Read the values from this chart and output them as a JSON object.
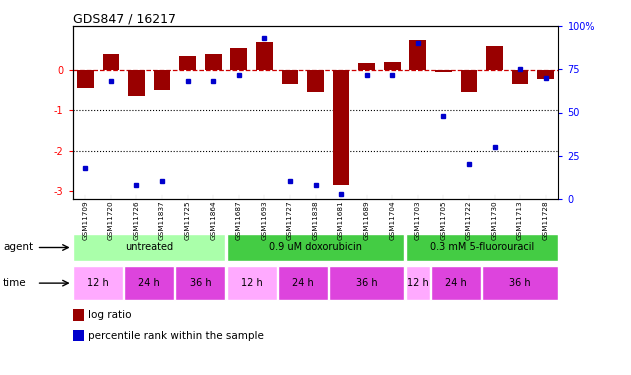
{
  "title": "GDS847 / 16217",
  "samples": [
    "GSM11709",
    "GSM11720",
    "GSM11726",
    "GSM11837",
    "GSM11725",
    "GSM11864",
    "GSM11687",
    "GSM11693",
    "GSM11727",
    "GSM11838",
    "GSM11681",
    "GSM11689",
    "GSM11704",
    "GSM11703",
    "GSM11705",
    "GSM11722",
    "GSM11730",
    "GSM11713",
    "GSM11728"
  ],
  "log_ratio": [
    -0.45,
    0.42,
    -0.65,
    -0.5,
    0.37,
    0.42,
    0.55,
    0.7,
    -0.35,
    -0.55,
    -2.85,
    0.18,
    0.22,
    0.75,
    -0.05,
    -0.55,
    0.6,
    -0.35,
    -0.22
  ],
  "percentile": [
    18,
    68,
    8,
    10,
    68,
    68,
    72,
    93,
    10,
    8,
    3,
    72,
    72,
    90,
    48,
    20,
    30,
    75,
    70
  ],
  "ylim_left": [
    -3.2,
    1.1
  ],
  "ylim_right": [
    0,
    100
  ],
  "bar_color": "#990000",
  "dot_color": "#0000cc",
  "hline_color": "#cc0000",
  "dotline1": -1.0,
  "dotline2": -2.0,
  "right_ticks": [
    0,
    25,
    50,
    75,
    100
  ],
  "right_tick_labels": [
    "0",
    "25",
    "50",
    "75",
    "100%"
  ],
  "agent_groups": [
    {
      "label": "untreated",
      "start": 0,
      "end": 6,
      "color": "#aaffaa"
    },
    {
      "label": "0.9 uM doxorubicin",
      "start": 6,
      "end": 13,
      "color": "#44cc44"
    },
    {
      "label": "0.3 mM 5-fluorouracil",
      "start": 13,
      "end": 19,
      "color": "#44cc44"
    }
  ],
  "time_groups": [
    {
      "label": "12 h",
      "color": "#ffaaff",
      "start": 0,
      "end": 2
    },
    {
      "label": "24 h",
      "color": "#dd44dd",
      "start": 2,
      "end": 4
    },
    {
      "label": "36 h",
      "color": "#dd44dd",
      "start": 4,
      "end": 6
    },
    {
      "label": "12 h",
      "color": "#ffaaff",
      "start": 6,
      "end": 8
    },
    {
      "label": "24 h",
      "color": "#dd44dd",
      "start": 8,
      "end": 10
    },
    {
      "label": "36 h",
      "color": "#dd44dd",
      "start": 10,
      "end": 13
    },
    {
      "label": "12 h",
      "color": "#ffaaff",
      "start": 13,
      "end": 14
    },
    {
      "label": "24 h",
      "color": "#dd44dd",
      "start": 14,
      "end": 16
    },
    {
      "label": "36 h",
      "color": "#dd44dd",
      "start": 16,
      "end": 19
    }
  ],
  "legend_items": [
    {
      "label": "log ratio",
      "color": "#990000"
    },
    {
      "label": "percentile rank within the sample",
      "color": "#0000cc"
    }
  ],
  "background_color": "#ffffff"
}
